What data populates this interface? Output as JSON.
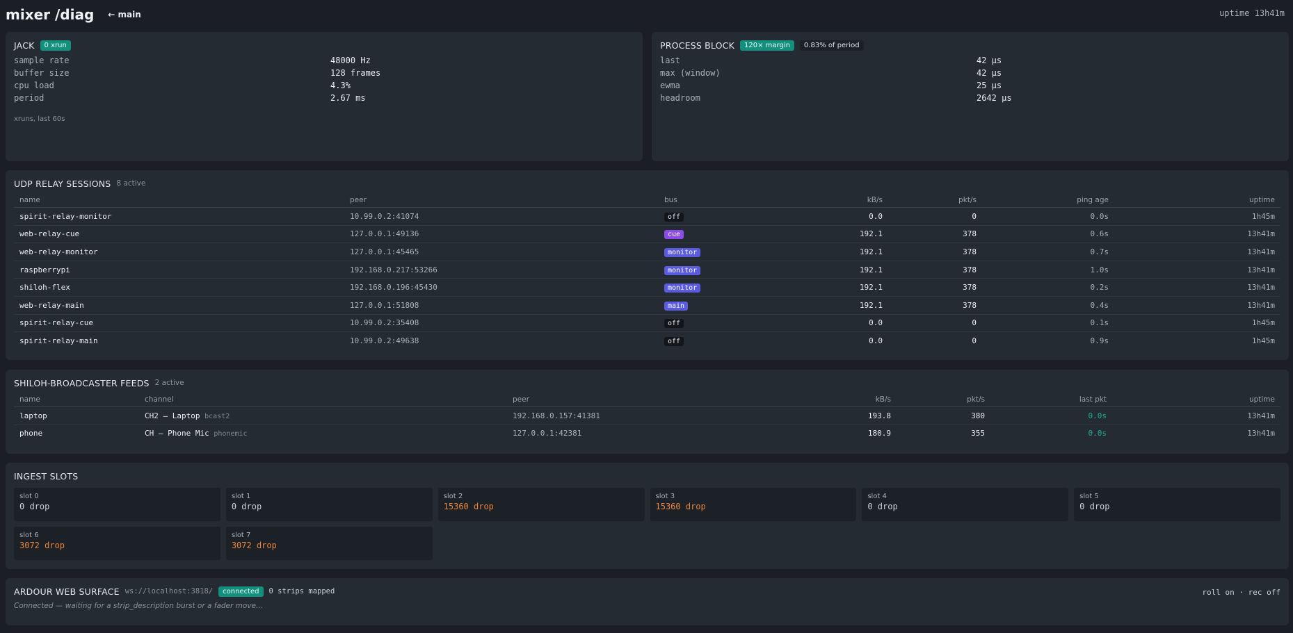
{
  "header": {
    "title": "mixer /diag",
    "back_label": "← main",
    "uptime": "uptime 13h41m"
  },
  "jack": {
    "title": "JACK",
    "badge": "0 xrun",
    "rows": [
      {
        "k": "sample rate",
        "v": "48000 Hz"
      },
      {
        "k": "buffer size",
        "v": "128 frames"
      },
      {
        "k": "cpu load",
        "v": "4.3%"
      },
      {
        "k": "period",
        "v": "2.67 ms"
      }
    ],
    "note": "xruns, last 60s"
  },
  "process": {
    "title": "PROCESS BLOCK",
    "badge_margin": "120× margin",
    "badge_period": "0.83% of period",
    "rows": [
      {
        "k": "last",
        "v": "42 µs"
      },
      {
        "k": "max (window)",
        "v": "42 µs"
      },
      {
        "k": "ewma",
        "v": "25 µs"
      },
      {
        "k": "headroom",
        "v": "2642 µs"
      }
    ]
  },
  "udp": {
    "title": "UDP RELAY SESSIONS",
    "sub": "8 active",
    "columns": [
      "name",
      "peer",
      "bus",
      "kB/s",
      "pkt/s",
      "ping age",
      "uptime"
    ],
    "rows": [
      {
        "name": "spirit-relay-monitor",
        "peer": "10.99.0.2:41074",
        "bus": "off",
        "kbs": "0.0",
        "pkts": "0",
        "ping": "0.0s",
        "uptime": "1h45m"
      },
      {
        "name": "web-relay-cue",
        "peer": "127.0.0.1:49136",
        "bus": "cue",
        "kbs": "192.1",
        "pkts": "378",
        "ping": "0.6s",
        "uptime": "13h41m"
      },
      {
        "name": "web-relay-monitor",
        "peer": "127.0.0.1:45465",
        "bus": "monitor",
        "kbs": "192.1",
        "pkts": "378",
        "ping": "0.7s",
        "uptime": "13h41m"
      },
      {
        "name": "raspberrypi",
        "peer": "192.168.0.217:53266",
        "bus": "monitor",
        "kbs": "192.1",
        "pkts": "378",
        "ping": "1.0s",
        "uptime": "13h41m"
      },
      {
        "name": "shiloh-flex",
        "peer": "192.168.0.196:45430",
        "bus": "monitor",
        "kbs": "192.1",
        "pkts": "378",
        "ping": "0.2s",
        "uptime": "13h41m"
      },
      {
        "name": "web-relay-main",
        "peer": "127.0.0.1:51808",
        "bus": "main",
        "kbs": "192.1",
        "pkts": "378",
        "ping": "0.4s",
        "uptime": "13h41m"
      },
      {
        "name": "spirit-relay-cue",
        "peer": "10.99.0.2:35408",
        "bus": "off",
        "kbs": "0.0",
        "pkts": "0",
        "ping": "0.1s",
        "uptime": "1h45m"
      },
      {
        "name": "spirit-relay-main",
        "peer": "10.99.0.2:49638",
        "bus": "off",
        "kbs": "0.0",
        "pkts": "0",
        "ping": "0.9s",
        "uptime": "1h45m"
      }
    ]
  },
  "feeds": {
    "title": "SHILOH-BROADCASTER FEEDS",
    "sub": "2 active",
    "columns": [
      "name",
      "channel",
      "peer",
      "kB/s",
      "pkt/s",
      "last pkt",
      "uptime"
    ],
    "rows": [
      {
        "name": "laptop",
        "channel": "CH2 — Laptop",
        "tag": "bcast2",
        "peer": "192.168.0.157:41381",
        "kbs": "193.8",
        "pkts": "380",
        "last": "0.0s",
        "uptime": "13h41m"
      },
      {
        "name": "phone",
        "channel": "CH — Phone Mic",
        "tag": "phonemic",
        "peer": "127.0.0.1:42381",
        "kbs": "180.9",
        "pkts": "355",
        "last": "0.0s",
        "uptime": "13h41m"
      }
    ]
  },
  "ingest": {
    "title": "INGEST SLOTS",
    "slots": [
      {
        "label": "slot 0",
        "value": "0 drop",
        "warn": false
      },
      {
        "label": "slot 1",
        "value": "0 drop",
        "warn": false
      },
      {
        "label": "slot 2",
        "value": "15360 drop",
        "warn": true
      },
      {
        "label": "slot 3",
        "value": "15360 drop",
        "warn": true
      },
      {
        "label": "slot 4",
        "value": "0 drop",
        "warn": false
      },
      {
        "label": "slot 5",
        "value": "0 drop",
        "warn": false
      },
      {
        "label": "slot 6",
        "value": "3072 drop",
        "warn": true
      },
      {
        "label": "slot 7",
        "value": "3072 drop",
        "warn": true
      }
    ]
  },
  "ardour": {
    "title": "ARDOUR WEB SURFACE",
    "url": "ws://localhost:3818/",
    "status": "connected",
    "strips": "0 strips mapped",
    "right": "roll on · rec off",
    "message": "Connected — waiting for a strip_description burst or a fader move…"
  },
  "colors": {
    "accent_teal": "#138f7e",
    "bus_cue": "#8b4bea",
    "bus_monitor": "#5b5be0",
    "warn": "#e8843a",
    "ok": "#1fae96"
  }
}
